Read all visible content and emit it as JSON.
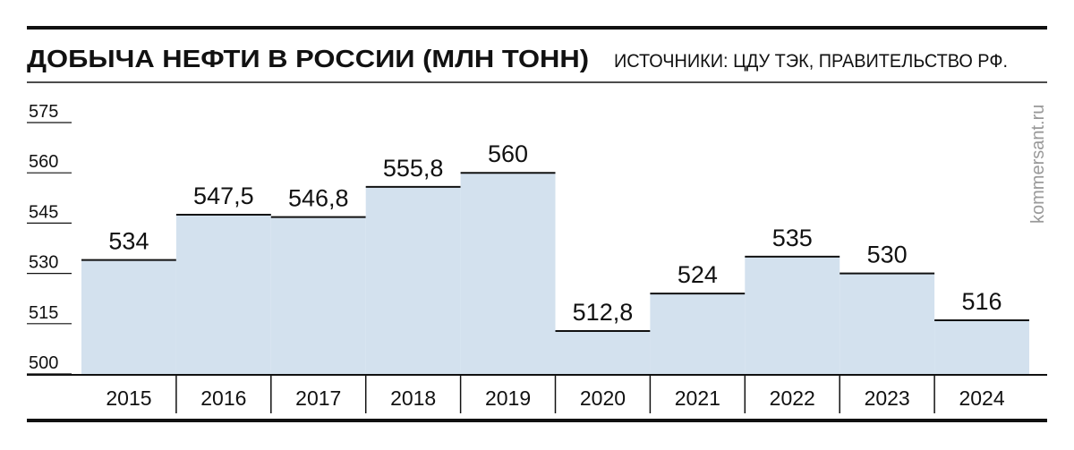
{
  "chart_data": {
    "type": "step-bar",
    "title": "ДОБЫЧА НЕФТИ В РОССИИ (МЛН ТОНН)",
    "subtitle": "ИСТОЧНИКИ: ЦДУ ТЭК, ПРАВИТЕЛЬСТВО РФ.",
    "watermark": "kommersant.ru",
    "categories": [
      "2015",
      "2016",
      "2017",
      "2018",
      "2019",
      "2020",
      "2021",
      "2022",
      "2023",
      "2024"
    ],
    "values": [
      534,
      547.5,
      546.8,
      555.8,
      560,
      512.8,
      524,
      535,
      530,
      516
    ],
    "value_labels": [
      "534",
      "547,5",
      "546,8",
      "555,8",
      "560",
      "512,8",
      "524",
      "535",
      "530",
      "516"
    ],
    "color": "#d3e1ee",
    "ylim": [
      500,
      575
    ],
    "yticks": [
      500,
      515,
      530,
      545,
      560,
      575
    ]
  }
}
